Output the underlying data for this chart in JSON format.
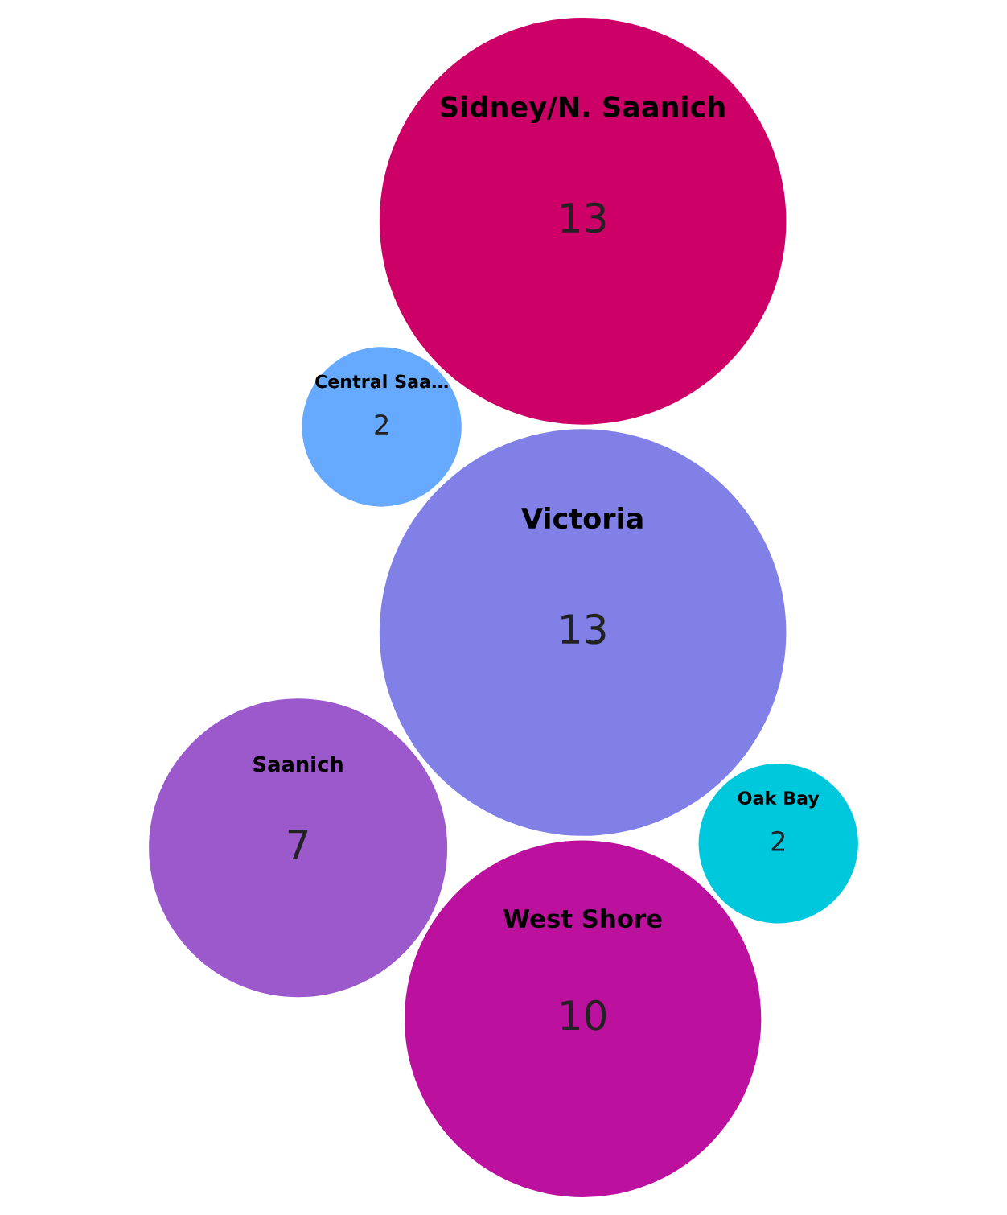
{
  "chart_data": {
    "type": "other",
    "categories": [
      "Oak Bay",
      "Saanich",
      "Central Saa…",
      "Victoria",
      "Sidney/N. Saanich",
      "West Shore"
    ],
    "values": [
      2,
      7,
      2,
      13,
      13,
      10
    ],
    "colors": [
      "#00c8dc",
      "#9b59cc",
      "#66aaff",
      "#8080e6",
      "#cc0066",
      "#bb119e"
    ],
    "data_labels": true
  }
}
